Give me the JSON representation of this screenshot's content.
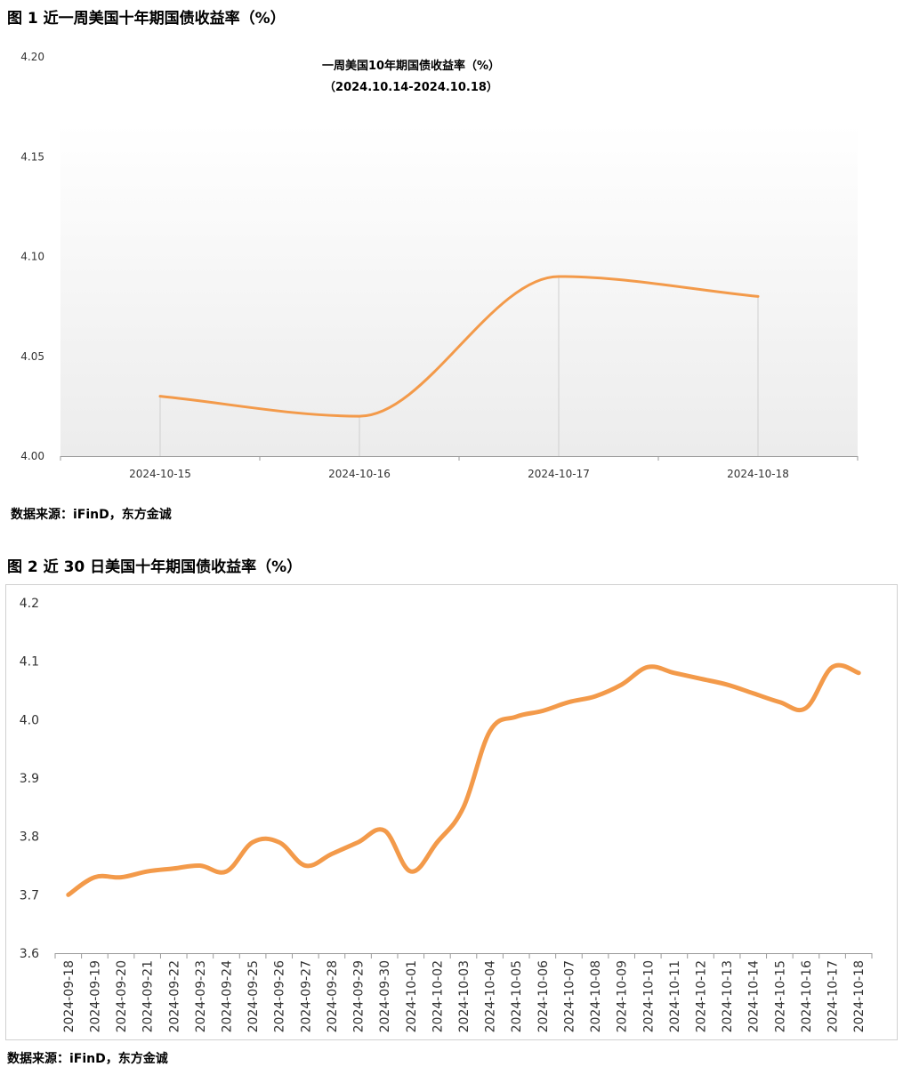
{
  "figure1": {
    "heading": "图 1  近一周美国十年期国债收益率（%）",
    "source": "数据来源：iFinD，东方金诚"
  },
  "figure2": {
    "heading": "图 2  近 30 日美国十年期国债收益率（%）",
    "source": "数据来源：iFinD，东方金诚"
  },
  "chart_data": [
    {
      "type": "line",
      "title": "一周美国10年期国债收益率（%）",
      "subtitle": "（2024.10.14-2024.10.18）",
      "categories": [
        "2024-10-15",
        "2024-10-16",
        "2024-10-17",
        "2024-10-18"
      ],
      "values": [
        4.03,
        4.02,
        4.09,
        4.08
      ],
      "ylim": [
        4.0,
        4.2
      ],
      "yticks": [
        "4.00",
        "4.05",
        "4.10",
        "4.15",
        "4.20"
      ],
      "line_color": "#F39A4A",
      "grid": false
    },
    {
      "type": "line",
      "categories": [
        "2024-09-18",
        "2024-09-19",
        "2024-09-20",
        "2024-09-21",
        "2024-09-22",
        "2024-09-23",
        "2024-09-24",
        "2024-09-25",
        "2024-09-26",
        "2024-09-27",
        "2024-09-28",
        "2024-09-29",
        "2024-09-30",
        "2024-10-01",
        "2024-10-02",
        "2024-10-03",
        "2024-10-04",
        "2024-10-05",
        "2024-10-06",
        "2024-10-07",
        "2024-10-08",
        "2024-10-09",
        "2024-10-10",
        "2024-10-11",
        "2024-10-12",
        "2024-10-13",
        "2024-10-14",
        "2024-10-15",
        "2024-10-16",
        "2024-10-17",
        "2024-10-18"
      ],
      "values": [
        3.7,
        3.73,
        3.73,
        3.74,
        3.745,
        3.75,
        3.74,
        3.79,
        3.79,
        3.75,
        3.77,
        3.79,
        3.81,
        3.74,
        3.79,
        3.85,
        3.98,
        4.005,
        4.015,
        4.03,
        4.04,
        4.06,
        4.09,
        4.08,
        4.07,
        4.06,
        4.045,
        4.03,
        4.02,
        4.09,
        4.08
      ],
      "ylim": [
        3.6,
        4.2
      ],
      "yticks": [
        "3.6",
        "3.7",
        "3.8",
        "3.9",
        "4.0",
        "4.1",
        "4.2"
      ],
      "line_color": "#F39A4A",
      "grid": false
    }
  ]
}
